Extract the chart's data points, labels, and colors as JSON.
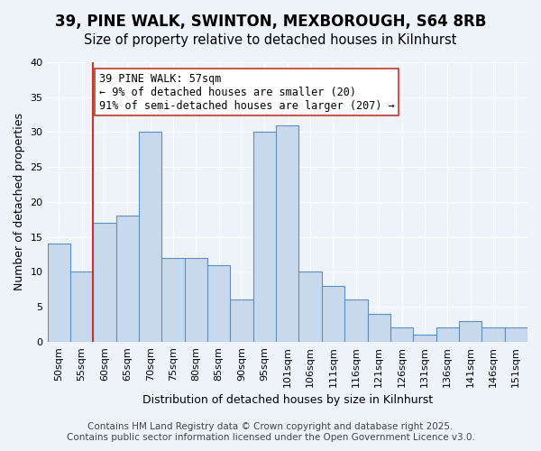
{
  "title_line1": "39, PINE WALK, SWINTON, MEXBOROUGH, S64 8RB",
  "title_line2": "Size of property relative to detached houses in Kilnhurst",
  "xlabel": "Distribution of detached houses by size in Kilnhurst",
  "ylabel": "Number of detached properties",
  "categories": [
    "50sqm",
    "55sqm",
    "60sqm",
    "65sqm",
    "70sqm",
    "75sqm",
    "80sqm",
    "85sqm",
    "90sqm",
    "95sqm",
    "101sqm",
    "106sqm",
    "111sqm",
    "116sqm",
    "121sqm",
    "126sqm",
    "131sqm",
    "136sqm",
    "141sqm",
    "146sqm",
    "151sqm"
  ],
  "values": [
    14,
    10,
    17,
    18,
    30,
    12,
    12,
    11,
    6,
    30,
    31,
    10,
    8,
    6,
    4,
    2,
    1,
    2,
    3,
    2,
    2
  ],
  "bar_color": "#c9d9ed",
  "bar_edge_color": "#5a8fc0",
  "red_line_x": 1.5,
  "highlight_line_color": "#c0392b",
  "annotation_text": "39 PINE WALK: 57sqm\n← 9% of detached houses are smaller (20)\n91% of semi-detached houses are larger (207) →",
  "annotation_box_color": "#ffffff",
  "annotation_box_edge_color": "#c0392b",
  "ylim": [
    0,
    40
  ],
  "yticks": [
    0,
    5,
    10,
    15,
    20,
    25,
    30,
    35,
    40
  ],
  "background_color": "#eef2f9",
  "plot_bg_color": "#eef2f9",
  "footer_line1": "Contains HM Land Registry data © Crown copyright and database right 2025.",
  "footer_line2": "Contains public sector information licensed under the Open Government Licence v3.0.",
  "title_fontsize": 12,
  "subtitle_fontsize": 10.5,
  "axis_label_fontsize": 9,
  "tick_fontsize": 8,
  "annotation_fontsize": 8.5,
  "footer_fontsize": 7.5
}
